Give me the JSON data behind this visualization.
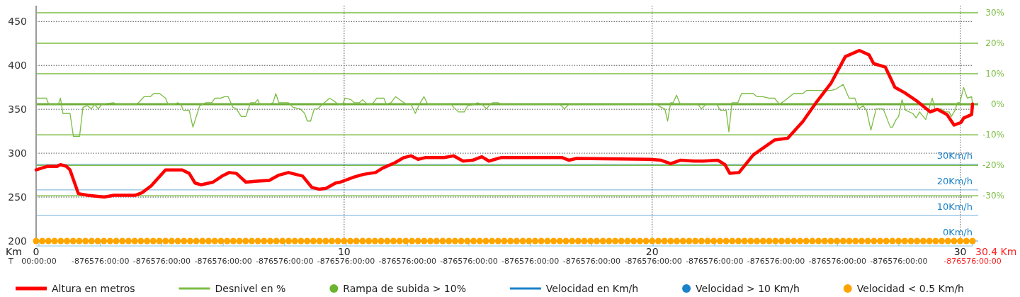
{
  "chart_data": {
    "type": "line",
    "xlabel": "Km",
    "xlim": [
      0,
      30.4
    ],
    "xticks": [
      0,
      10,
      20,
      30
    ],
    "ylim": [
      200,
      468
    ],
    "yticks": [
      200,
      250,
      300,
      350,
      400,
      450
    ],
    "y2lim": [
      -44.8,
      32.3
    ],
    "y2ticks": [
      {
        "value": -30,
        "label": "-30%"
      },
      {
        "value": -20,
        "label": "-20%"
      },
      {
        "value": -10,
        "label": "-10%"
      },
      {
        "value": 0,
        "label": "0%"
      },
      {
        "value": 10,
        "label": "10%"
      },
      {
        "value": 20,
        "label": "20%"
      },
      {
        "value": 30,
        "label": "30%"
      }
    ],
    "y3lim": [
      0,
      92
    ],
    "y3ticks": [
      {
        "value": 0,
        "label": "0Km/h"
      },
      {
        "value": 10,
        "label": "10Km/h"
      },
      {
        "value": 20,
        "label": "20Km/h"
      },
      {
        "value": 30,
        "label": "30Km/h"
      }
    ],
    "grid": true,
    "legend": "bottom",
    "ref_lines": [
      {
        "axis": "y2",
        "value": 0,
        "color": "#6fae3a"
      }
    ],
    "annotations": [
      "30.4 Km",
      "T",
      "00:00:00",
      "-876576:00:00",
      "-876576:00:00",
      "-876576:00:00",
      "-876576:00:00",
      "-876576:00:00",
      "-876576:00:00",
      "-876576:00:00",
      "-876576:00:00",
      "-876576:00:00",
      "-876576:00:00",
      "-876576:00:00",
      "-876576:00:00",
      "-876576:00:00",
      "-876576:00:00",
      "-876576:00:00"
    ],
    "series": [
      {
        "name": "Altura en metros",
        "axis": "y",
        "color": "#ff0000",
        "x": [
          0,
          0.37,
          0.68,
          0.79,
          0.98,
          1.1,
          1.37,
          1.67,
          2.21,
          2.52,
          3.21,
          3.44,
          3.74,
          4.2,
          4.74,
          4.97,
          5.16,
          5.35,
          5.74,
          6.04,
          6.27,
          6.5,
          6.81,
          7.11,
          7.57,
          7.88,
          8.19,
          8.65,
          8.95,
          9.18,
          9.41,
          9.72,
          9.87,
          10.33,
          10.64,
          11.02,
          11.25,
          11.64,
          11.94,
          12.17,
          12.4,
          12.63,
          13.25,
          13.55,
          13.86,
          14.17,
          14.47,
          14.7,
          15.09,
          17.08,
          17.3,
          17.54,
          19.91,
          20.29,
          20.6,
          20.91,
          21.36,
          21.67,
          22.13,
          22.36,
          22.52,
          22.82,
          23.28,
          23.97,
          24.4,
          24.89,
          25.35,
          25.81,
          26.27,
          26.73,
          27.04,
          27.19,
          27.57,
          27.88,
          28.19,
          28.57,
          29.03,
          29.26,
          29.57,
          29.8,
          30.03,
          30.11,
          30.37,
          30.4
        ],
        "values": [
          281,
          285,
          285,
          287,
          285,
          281,
          254,
          252,
          250,
          252,
          252,
          255,
          263,
          281,
          281,
          277,
          266,
          264,
          267,
          274,
          278,
          277,
          267,
          268,
          269,
          275,
          278,
          274,
          261,
          259,
          260,
          266,
          267,
          273,
          276,
          278,
          283,
          289,
          295,
          297,
          293,
          295,
          295,
          297,
          291,
          292,
          296,
          291,
          295,
          295,
          292,
          294,
          293,
          292,
          288,
          292,
          291,
          291,
          292,
          287,
          277,
          278,
          298,
          315,
          317,
          336,
          359,
          380,
          410,
          417,
          412,
          402,
          398,
          375,
          369,
          360,
          347,
          350,
          344,
          332,
          335,
          340,
          344,
          356
        ]
      },
      {
        "name": "Desnivel en %",
        "axis": "y2",
        "color": "#7cbd45",
        "x": [
          0,
          0.33,
          0.41,
          0.72,
          0.79,
          0.87,
          1.1,
          1.21,
          1.41,
          1.52,
          1.67,
          1.79,
          1.9,
          2.02,
          2.13,
          2.52,
          2.59,
          3.24,
          3.32,
          3.51,
          3.71,
          3.82,
          4.01,
          4.2,
          4.28,
          4.51,
          4.59,
          4.7,
          4.78,
          4.97,
          5.09,
          5.31,
          5.51,
          5.7,
          5.81,
          6,
          6.12,
          6.23,
          6.39,
          6.5,
          6.66,
          6.81,
          6.96,
          7.11,
          7.19,
          7.26,
          7.57,
          7.69,
          7.78,
          7.88,
          8.19,
          8.34,
          8.57,
          8.72,
          8.8,
          8.91,
          9.03,
          9.14,
          9.3,
          9.53,
          9.68,
          9.8,
          9.95,
          10.03,
          10.22,
          10.33,
          10.49,
          10.6,
          10.75,
          10.91,
          11.06,
          11.29,
          11.37,
          11.52,
          11.67,
          11.87,
          12.02,
          12.17,
          12.31,
          12.44,
          12.59,
          12.71,
          13.48,
          13.55,
          13.71,
          13.9,
          14.01,
          14.24,
          14.32,
          14.47,
          14.62,
          14.74,
          14.82,
          15.01,
          15.09,
          17,
          17.15,
          17.3,
          20.14,
          20.29,
          20.41,
          20.5,
          20.6,
          20.68,
          20.79,
          20.91,
          21.48,
          21.6,
          21.75,
          22.1,
          22.21,
          22.4,
          22.49,
          22.59,
          22.78,
          22.9,
          23.28,
          23.4,
          23.59,
          23.78,
          23.97,
          24.13,
          24.28,
          24.59,
          24.89,
          25.01,
          25.81,
          25.97,
          26.2,
          26.39,
          26.58,
          26.7,
          26.85,
          26.96,
          27.1,
          27.27,
          27.5,
          27.73,
          27.8,
          27.92,
          28,
          28.11,
          28.23,
          28.46,
          28.57,
          28.68,
          28.88,
          29.09,
          29.18,
          29.37,
          29.52,
          29.64,
          29.71,
          29.83,
          29.91,
          29.99,
          30.11,
          30.23,
          30.37,
          30.4
        ],
        "values": [
          2,
          2,
          0,
          0,
          2,
          -3,
          -3,
          -10.5,
          -10.5,
          -1,
          -0.5,
          -1.5,
          0,
          -1.5,
          0,
          0.5,
          0,
          0,
          0.5,
          2.5,
          2.5,
          3.5,
          3.5,
          2,
          0,
          0,
          0.5,
          0,
          -2,
          -2,
          -7.5,
          -0.5,
          0.5,
          0.5,
          2,
          2,
          2.5,
          2.5,
          -1,
          -1.5,
          -4,
          -4,
          0.5,
          0.5,
          1.5,
          0,
          0,
          0.5,
          3.5,
          0.5,
          0.5,
          -1,
          -1.5,
          -3,
          -5.5,
          -5.5,
          -1.5,
          -1.5,
          0,
          2,
          1,
          0,
          0,
          2,
          1.5,
          0.5,
          0.5,
          1.5,
          0,
          0,
          2,
          2,
          0,
          0.5,
          2.5,
          1,
          0,
          0,
          -3,
          0,
          2.5,
          0,
          0,
          -1,
          -2.5,
          -2.5,
          -0.5,
          0,
          0.5,
          0,
          -1.5,
          0,
          0.5,
          0.5,
          0,
          0,
          -1.5,
          0,
          0,
          -1,
          -1.5,
          -5.5,
          0.5,
          0.5,
          3,
          0,
          0,
          -1.5,
          0,
          0,
          -2,
          -2,
          -9,
          0.5,
          0.5,
          3.5,
          3.5,
          2.5,
          2.5,
          2,
          2,
          0,
          1,
          3.5,
          3.5,
          4.5,
          4.5,
          5,
          6.5,
          2,
          2,
          -1.5,
          -0.5,
          -2,
          -8.5,
          -1.5,
          -1.5,
          -7.5,
          -7.5,
          -5,
          -4,
          1.5,
          -2,
          -3,
          -4.5,
          -2.5,
          -5,
          2,
          -1.5,
          -1.5,
          -2.5,
          -2.5,
          -4,
          -2,
          0.5,
          0.5,
          5.5,
          2,
          2.5,
          0
        ]
      },
      {
        "name": "Rampa de subida > 10%",
        "type": "scatter",
        "axis": "y2",
        "color": "#6ab42f",
        "marker": "circle"
      },
      {
        "name": "Velocidad en Km/h",
        "axis": "y3",
        "color": "#1a82c8"
      },
      {
        "name": "Velocidad > 10 Km/h",
        "type": "scatter",
        "axis": "y3",
        "color": "#1a82c8",
        "marker": "circle"
      },
      {
        "name": "Velocidad < 0.5 Km/h",
        "type": "scatter",
        "axis": "y3",
        "color": "#ffa500",
        "marker": "circle",
        "x": [
          0,
          0.2,
          0.4,
          0.6,
          0.8,
          1,
          1.2,
          1.4,
          1.6,
          1.8,
          2,
          2.2,
          2.4,
          2.6,
          2.8,
          3,
          3.2,
          3.4,
          3.6,
          3.8,
          4,
          4.2,
          4.4,
          4.6,
          4.8,
          5,
          5.2,
          5.4,
          5.6,
          5.8,
          6,
          6.2,
          6.4,
          6.6,
          6.8,
          7,
          7.2,
          7.4,
          7.6,
          7.8,
          8,
          8.2,
          8.4,
          8.6,
          8.8,
          9,
          9.2,
          9.4,
          9.6,
          9.8,
          10,
          10.2,
          10.4,
          10.6,
          10.8,
          11,
          11.2,
          11.4,
          11.6,
          11.8,
          12,
          12.2,
          12.4,
          12.6,
          12.8,
          13,
          13.2,
          13.4,
          13.6,
          13.8,
          14,
          14.2,
          14.4,
          14.6,
          14.8,
          15,
          15.2,
          15.4,
          15.6,
          15.8,
          16,
          16.2,
          16.4,
          16.6,
          16.8,
          17,
          17.2,
          17.4,
          17.6,
          17.8,
          18,
          18.2,
          18.4,
          18.6,
          18.8,
          19,
          19.2,
          19.4,
          19.6,
          19.8,
          20,
          20.2,
          20.4,
          20.6,
          20.8,
          21,
          21.2,
          21.4,
          21.6,
          21.8,
          22,
          22.2,
          22.4,
          22.6,
          22.8,
          23,
          23.2,
          23.4,
          23.6,
          23.8,
          24,
          24.2,
          24.4,
          24.6,
          24.8,
          25,
          25.2,
          25.4,
          25.6,
          25.8,
          26,
          26.2,
          26.4,
          26.6,
          26.8,
          27,
          27.2,
          27.4,
          27.6,
          27.8,
          28,
          28.2,
          28.4,
          28.6,
          28.8,
          29,
          29.2,
          29.4,
          29.6,
          29.8,
          30,
          30.2,
          30.4
        ],
        "values": [
          0,
          0,
          0,
          0,
          0,
          0,
          0,
          0,
          0,
          0,
          0,
          0,
          0,
          0,
          0,
          0,
          0,
          0,
          0,
          0,
          0,
          0,
          0,
          0,
          0,
          0,
          0,
          0,
          0,
          0,
          0,
          0,
          0,
          0,
          0,
          0,
          0,
          0,
          0,
          0,
          0,
          0,
          0,
          0,
          0,
          0,
          0,
          0,
          0,
          0,
          0,
          0,
          0,
          0,
          0,
          0,
          0,
          0,
          0,
          0,
          0,
          0,
          0,
          0,
          0,
          0,
          0,
          0,
          0,
          0,
          0,
          0,
          0,
          0,
          0,
          0,
          0,
          0,
          0,
          0,
          0,
          0,
          0,
          0,
          0,
          0,
          0,
          0,
          0,
          0,
          0,
          0,
          0,
          0,
          0,
          0,
          0,
          0,
          0,
          0,
          0,
          0,
          0,
          0,
          0,
          0,
          0,
          0,
          0,
          0,
          0,
          0,
          0,
          0,
          0,
          0,
          0,
          0,
          0,
          0,
          0,
          0,
          0,
          0,
          0,
          0,
          0,
          0,
          0,
          0,
          0,
          0,
          0,
          0,
          0,
          0,
          0,
          0,
          0,
          0,
          0,
          0,
          0,
          0,
          0,
          0,
          0,
          0,
          0,
          0,
          0,
          0,
          0
        ]
      }
    ]
  }
}
